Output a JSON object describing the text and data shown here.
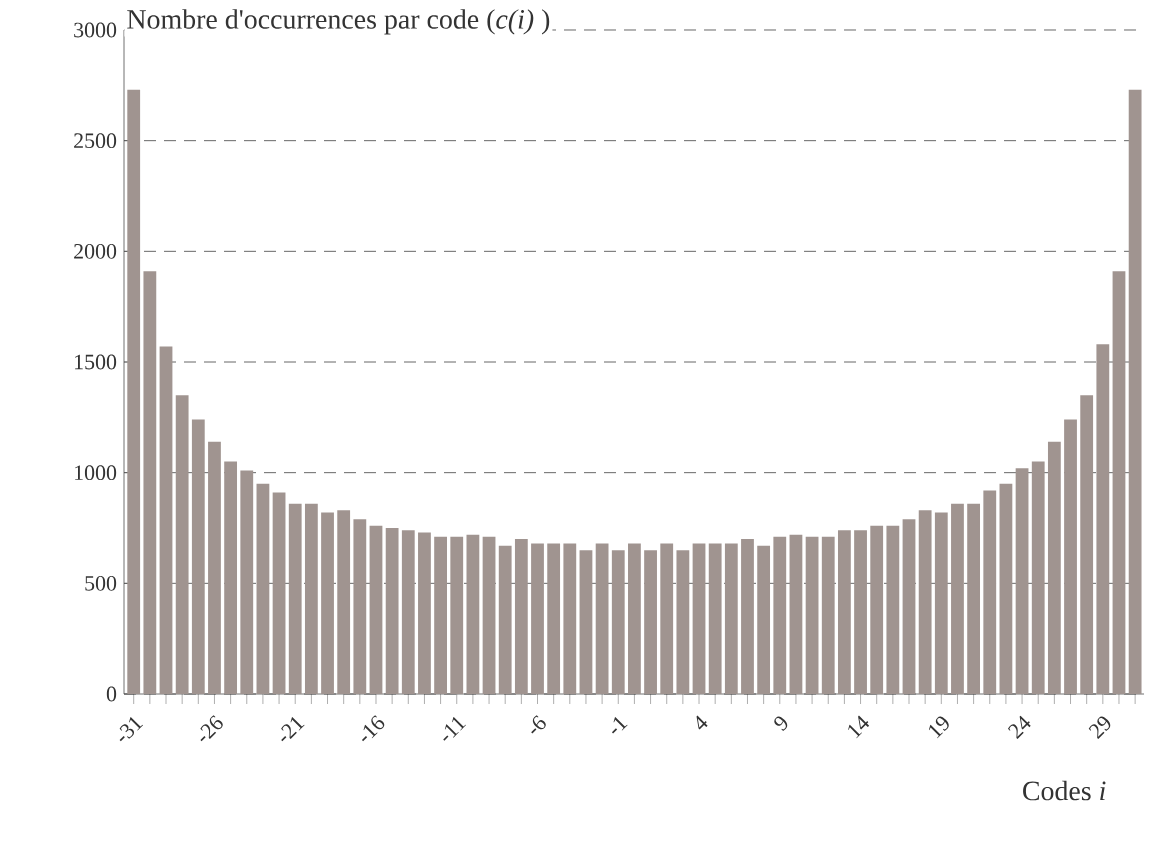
{
  "chart_data": {
    "type": "bar",
    "title": "Nombre d'occurrences par code (*c(i)* )",
    "xlabel": "Codes *i*",
    "categories": [
      "-31",
      null,
      null,
      null,
      null,
      "-26",
      null,
      null,
      null,
      null,
      "-21",
      null,
      null,
      null,
      null,
      "-16",
      null,
      null,
      null,
      null,
      "-11",
      null,
      null,
      null,
      null,
      "-6",
      null,
      null,
      null,
      null,
      "-1",
      null,
      null,
      null,
      null,
      "4",
      null,
      null,
      null,
      null,
      "9",
      null,
      null,
      null,
      null,
      "14",
      null,
      null,
      null,
      null,
      "19",
      null,
      null,
      null,
      null,
      "24",
      null,
      null,
      null,
      null,
      "29",
      null,
      null
    ],
    "values": [
      2730,
      1910,
      1570,
      1350,
      1240,
      1140,
      1050,
      1010,
      950,
      910,
      860,
      860,
      820,
      830,
      790,
      760,
      750,
      740,
      730,
      710,
      710,
      720,
      710,
      670,
      700,
      680,
      680,
      680,
      650,
      680,
      650,
      680,
      650,
      680,
      650,
      680,
      680,
      680,
      700,
      670,
      710,
      720,
      710,
      710,
      740,
      740,
      760,
      760,
      790,
      830,
      820,
      860,
      860,
      920,
      950,
      1020,
      1050,
      1140,
      1240,
      1350,
      1580,
      1910,
      2730
    ],
    "color": "#a09490",
    "ylim": [
      0,
      3000
    ],
    "yticks": [
      0,
      500,
      1000,
      1500,
      2000,
      2500,
      3000
    ],
    "grid": "y"
  }
}
